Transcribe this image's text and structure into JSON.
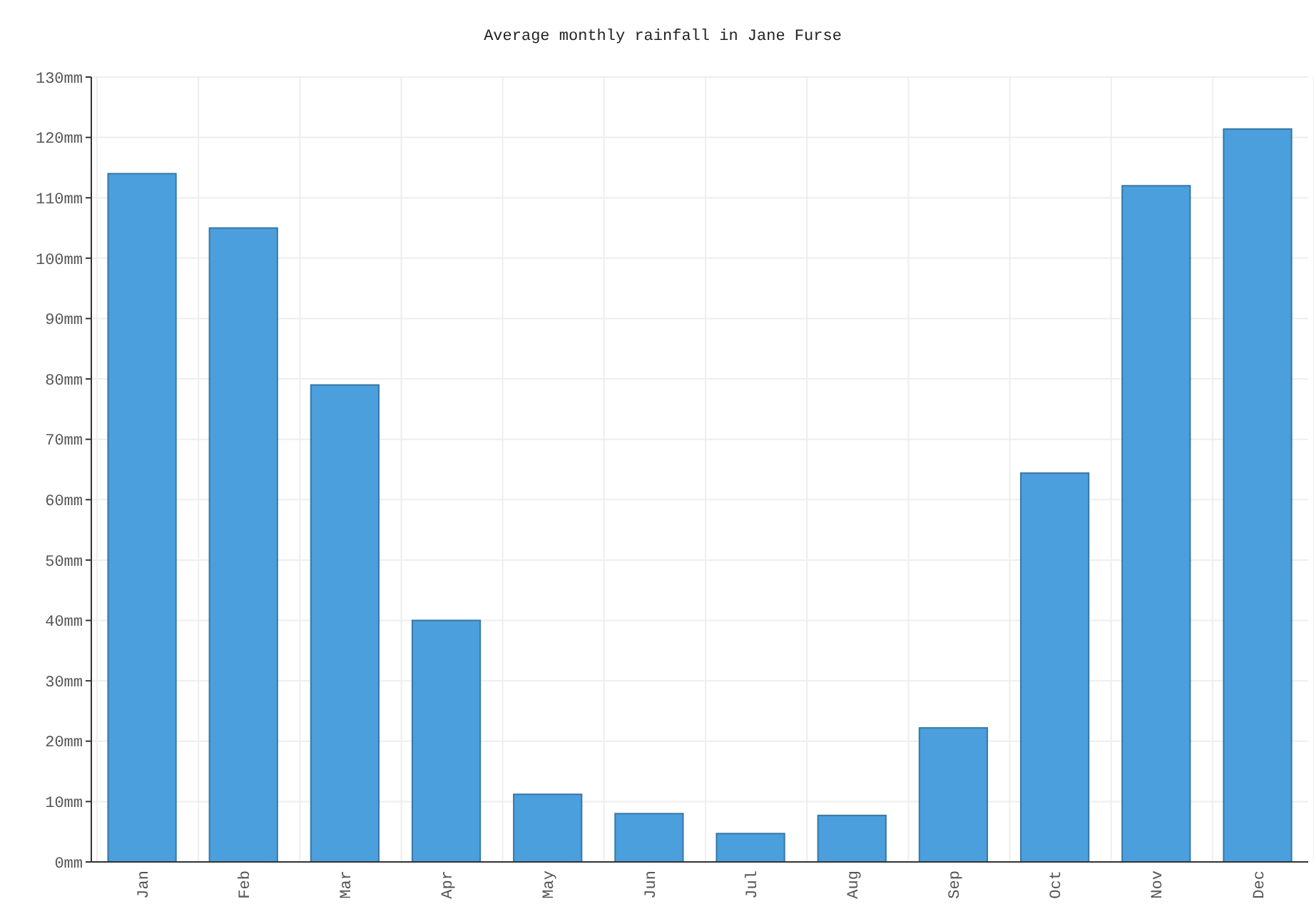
{
  "chart_data": {
    "type": "bar",
    "title": "Average monthly rainfall in Jane Furse",
    "categories": [
      "Jan",
      "Feb",
      "Mar",
      "Apr",
      "May",
      "Jun",
      "Jul",
      "Aug",
      "Sep",
      "Oct",
      "Nov",
      "Dec"
    ],
    "values": [
      114,
      105,
      79,
      40,
      11.2,
      8,
      4.7,
      7.7,
      22.2,
      64.4,
      112,
      121.4
    ],
    "color": "#4a9fdc",
    "ylim": [
      0,
      130
    ],
    "yticks": [
      {
        "value": 0,
        "label": "0mm"
      },
      {
        "value": 10,
        "label": "10mm"
      },
      {
        "value": 20,
        "label": "20mm"
      },
      {
        "value": 30,
        "label": "30mm"
      },
      {
        "value": 40,
        "label": "40mm"
      },
      {
        "value": 50,
        "label": "50mm"
      },
      {
        "value": 60,
        "label": "60mm"
      },
      {
        "value": 70,
        "label": "70mm"
      },
      {
        "value": 80,
        "label": "80mm"
      },
      {
        "value": 90,
        "label": "90mm"
      },
      {
        "value": 100,
        "label": "100mm"
      },
      {
        "value": 110,
        "label": "110mm"
      },
      {
        "value": 120,
        "label": "120mm"
      },
      {
        "value": 130,
        "label": "130mm"
      }
    ],
    "grid": true
  }
}
